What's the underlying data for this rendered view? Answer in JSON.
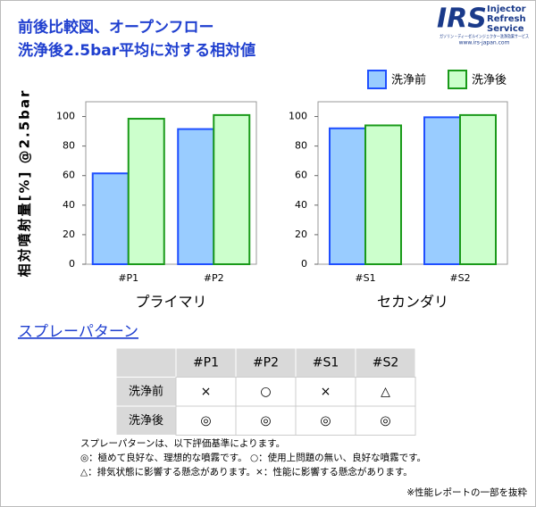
{
  "header": {
    "title_lines": [
      "前後比較図、オープンフロー",
      "洗浄後2.5bar平均に対する相対値"
    ],
    "logo": {
      "mark": "IRS",
      "name_lines": [
        "Injector",
        "Refresh",
        "Service"
      ],
      "tagline": "ガソリン・ディーゼルインジェクター洗浄効果サービス",
      "url": "www.irs-japan.com"
    }
  },
  "chart_data": [
    {
      "type": "bar",
      "x_label": "プライマリ",
      "y_label": "相対噴射量[%] @2.5bar",
      "categories": [
        "#P1",
        "#P2"
      ],
      "series": [
        {
          "name": "洗浄前",
          "color": "#99ccff",
          "edge": "#1f4fff",
          "values": [
            61.5,
            91.5
          ]
        },
        {
          "name": "洗浄後",
          "color": "#ccffcc",
          "edge": "#1a9a1a",
          "values": [
            98.5,
            101
          ]
        }
      ],
      "ylim": [
        0,
        110
      ],
      "yticks": [
        0,
        20,
        40,
        60,
        80,
        100
      ]
    },
    {
      "type": "bar",
      "x_label": "セカンダリ",
      "categories": [
        "#S1",
        "#S2"
      ],
      "series": [
        {
          "color": "#99ccff",
          "edge": "#1f4fff",
          "values": [
            92,
            99.5
          ]
        },
        {
          "color": "#ccffcc",
          "edge": "#1a9a1a",
          "values": [
            94,
            101
          ]
        }
      ],
      "ylim": [
        0,
        110
      ],
      "yticks": [
        0,
        20,
        40,
        60,
        80,
        100
      ]
    }
  ],
  "spray": {
    "heading": "スプレーパターン",
    "columns": [
      "#P1",
      "#P2",
      "#S1",
      "#S2"
    ],
    "rows": [
      {
        "label": "洗浄前",
        "cells": [
          "×",
          "○",
          "×",
          "△"
        ]
      },
      {
        "label": "洗浄後",
        "cells": [
          "◎",
          "◎",
          "◎",
          "◎"
        ]
      }
    ],
    "notes": [
      "スプレーパターンは、以下評価基準によります。",
      "◎：極めて良好な、理想的な噴霧です。 ○：使用上問題の無い、良好な噴霧です。",
      "△：排気状態に影響する懸念があります。×：性能に影響する懸念があります。"
    ],
    "footnote": "※性能レポートの一部を抜粋"
  }
}
